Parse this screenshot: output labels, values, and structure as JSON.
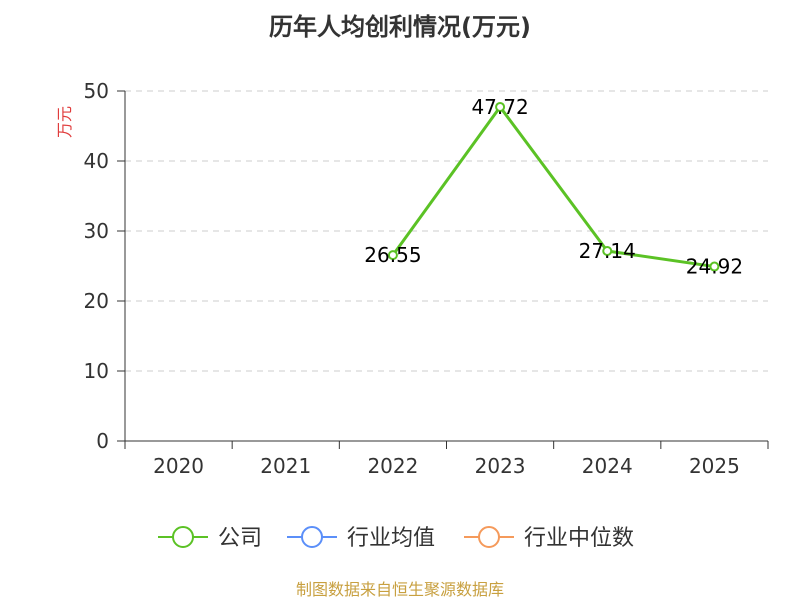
{
  "chart_data": {
    "type": "line",
    "title": "历年人均创利情况(万元)",
    "ylabel": "万元",
    "xlabel": "",
    "categories": [
      "2020",
      "2021",
      "2022",
      "2023",
      "2024",
      "2025"
    ],
    "ylim": [
      0,
      50
    ],
    "yticks": [
      0,
      10,
      20,
      30,
      40,
      50
    ],
    "grid": true,
    "series": [
      {
        "name": "公司",
        "color": "#5bc225",
        "values": [
          null,
          null,
          26.55,
          47.72,
          27.14,
          24.92
        ],
        "labels": [
          "",
          "",
          "26.55",
          "47.72",
          "27.14",
          "24.92"
        ]
      },
      {
        "name": "行业均值",
        "color": "#5b8ff9",
        "values": [
          null,
          null,
          null,
          null,
          null,
          null
        ]
      },
      {
        "name": "行业中位数",
        "color": "#f59a5b",
        "values": [
          null,
          null,
          null,
          null,
          null,
          null
        ]
      }
    ],
    "legend_position": "bottom"
  },
  "source": "制图数据来自恒生聚源数据库",
  "colors": {
    "ylabel": "#e03c3c",
    "source": "#c8a040",
    "grid": "#cccccc",
    "axis": "#333333"
  }
}
